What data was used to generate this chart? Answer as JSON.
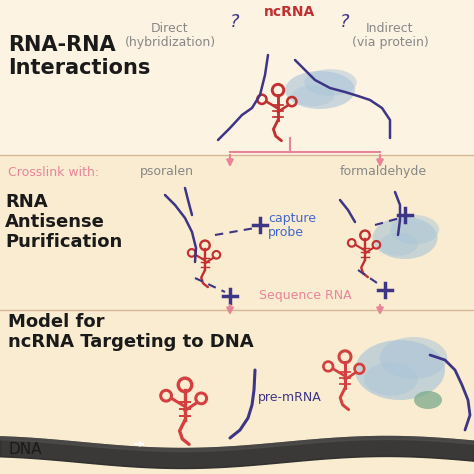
{
  "bg_top": "#fdf3e3",
  "bg_mid": "#faecd0",
  "bg_bot": "#faecd0",
  "color_pink": "#e8849a",
  "color_red": "#c23030",
  "color_red2": "#d44040",
  "color_blue_dark": "#3d3585",
  "color_blue_label": "#4466cc",
  "color_gray": "#888888",
  "color_gray_light": "#bbbbbb",
  "color_blue_protein": "#a8c4d8",
  "color_green_protein": "#7aaa8a",
  "color_black": "#1a1a1a",
  "title1": "RNA-RNA",
  "title2": "Interactions",
  "label_direct": "Direct",
  "label_direct2": "(hybridization)",
  "label_indirect": "Indirect",
  "label_indirect2": "(via protein)",
  "label_ncRNA": "ncRNA",
  "label_crosslink": "Crosslink with:",
  "label_psoralen": "psoralen",
  "label_formaldehyde": "formaldehyde",
  "label_RAP1": "RNA",
  "label_RAP2": "Antisense",
  "label_RAP3": "Purification",
  "label_capture": "capture",
  "label_probe": "probe",
  "label_sequence": "Sequence RNA",
  "label_model1": "Model for",
  "label_model2": "ncRNA Targeting to DNA",
  "label_pre_mRNA": "pre-mRNA",
  "label_DNA": "DNA",
  "figsize": [
    4.74,
    4.74
  ],
  "dpi": 100
}
